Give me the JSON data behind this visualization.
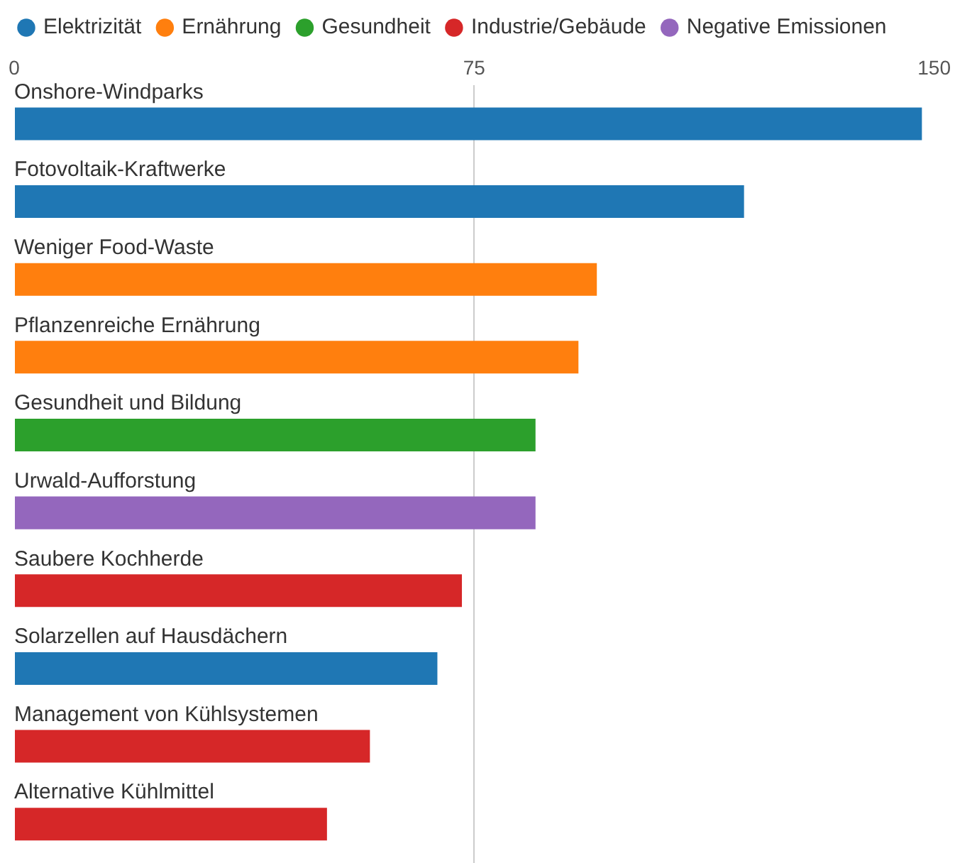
{
  "chart_data": {
    "type": "bar",
    "orientation": "horizontal",
    "categories": [
      "Onshore-Windparks",
      "Fotovoltaik-Kraftwerke",
      "Weniger Food-Waste",
      "Pflanzenreiche Ernährung",
      "Gesundheit und Bildung",
      "Urwald-Aufforstung",
      "Saubere Kochherde",
      "Solarzellen auf Hausdächern",
      "Management von Kühlsystemen",
      "Alternative Kühlmittel"
    ],
    "series": [
      {
        "name": "Elektrizität",
        "color": "#1f77b4",
        "values": [
          148,
          119,
          null,
          null,
          null,
          null,
          null,
          69,
          null,
          null
        ]
      },
      {
        "name": "Ernährung",
        "color": "#ff7f0e",
        "values": [
          null,
          null,
          95,
          92,
          null,
          null,
          null,
          null,
          null,
          null
        ]
      },
      {
        "name": "Gesundheit",
        "color": "#2ca02c",
        "values": [
          null,
          null,
          null,
          null,
          85,
          null,
          null,
          null,
          null,
          null
        ]
      },
      {
        "name": "Industrie/Gebäude",
        "color": "#d62728",
        "values": [
          null,
          null,
          null,
          null,
          null,
          null,
          73,
          null,
          58,
          51
        ]
      },
      {
        "name": "Negative Emissionen",
        "color": "#9467bd",
        "values": [
          null,
          null,
          null,
          null,
          null,
          85,
          null,
          null,
          null,
          null
        ]
      }
    ],
    "xlim": [
      0,
      150
    ],
    "xticks": [
      0,
      75,
      150
    ],
    "grid": "x",
    "legend": "top left"
  }
}
